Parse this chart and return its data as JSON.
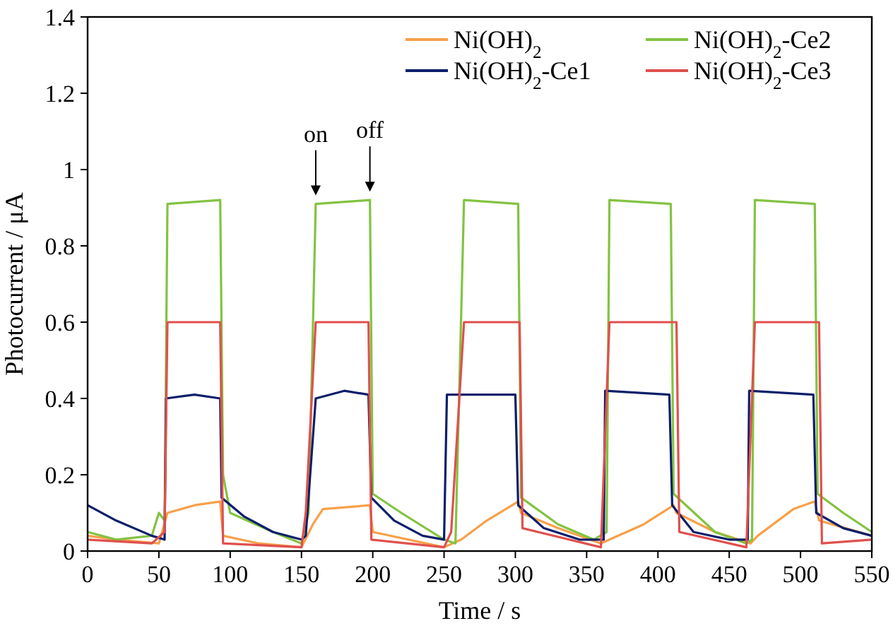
{
  "chart_data": {
    "type": "line",
    "xlabel": "Time / s",
    "ylabel": "Photocurrent / μA",
    "xlim": [
      0,
      550
    ],
    "xticks": [
      0,
      50,
      100,
      150,
      200,
      250,
      300,
      350,
      400,
      450,
      500,
      550
    ],
    "ylim": [
      0,
      1.4
    ],
    "yticks": [
      0,
      0.2,
      0.4,
      0.6,
      0.8,
      1,
      1.2,
      1.4
    ],
    "grid": false,
    "legend": "top right",
    "marker": "none",
    "line_style": "solid",
    "annotations": [
      {
        "text": "on",
        "x": 160,
        "y": 0.91
      },
      {
        "text": "off",
        "x": 198,
        "y": 0.92
      }
    ],
    "series": [
      {
        "name": "Ni(OH)$_{2}$",
        "color": "#f7a04a",
        "x": [
          0,
          20,
          50,
          56,
          75,
          93,
          95,
          120,
          150,
          158,
          165,
          198,
          200,
          250,
          262,
          280,
          302,
          304,
          330,
          360,
          366,
          390,
          411,
          413,
          440,
          465,
          470,
          495,
          510,
          513,
          550
        ],
        "values": [
          0.04,
          0.03,
          0.02,
          0.1,
          0.12,
          0.13,
          0.04,
          0.02,
          0.01,
          0.07,
          0.11,
          0.12,
          0.05,
          0.01,
          0.03,
          0.08,
          0.13,
          0.1,
          0.06,
          0.02,
          0.03,
          0.07,
          0.12,
          0.1,
          0.05,
          0.02,
          0.04,
          0.11,
          0.13,
          0.08,
          0.04
        ]
      },
      {
        "name": "Ni(OH)$_{2}$-Ce2",
        "color": "#82c341",
        "x": [
          0,
          20,
          45,
          50,
          54,
          56,
          93,
          95,
          100,
          130,
          150,
          155,
          160,
          198,
          200,
          220,
          250,
          258,
          264,
          302,
          304,
          330,
          355,
          364,
          366,
          409,
          411,
          440,
          462,
          466,
          468,
          510,
          512,
          530,
          550
        ],
        "values": [
          0.05,
          0.03,
          0.04,
          0.1,
          0.08,
          0.91,
          0.92,
          0.2,
          0.1,
          0.05,
          0.02,
          0.1,
          0.91,
          0.92,
          0.15,
          0.1,
          0.03,
          0.02,
          0.92,
          0.91,
          0.14,
          0.07,
          0.03,
          0.05,
          0.92,
          0.91,
          0.15,
          0.05,
          0.02,
          0.03,
          0.92,
          0.91,
          0.15,
          0.1,
          0.05
        ]
      },
      {
        "name": "Ni(OH)$_{2}$-Ce1",
        "color": "#0b1f6b",
        "x": [
          0,
          20,
          45,
          54,
          55,
          75,
          93,
          94,
          110,
          130,
          150,
          153,
          160,
          180,
          197,
          199,
          215,
          235,
          250,
          252,
          300,
          302,
          320,
          345,
          362,
          363,
          408,
          410,
          425,
          450,
          463,
          464,
          509,
          511,
          530,
          550
        ],
        "values": [
          0.12,
          0.08,
          0.04,
          0.03,
          0.4,
          0.41,
          0.4,
          0.14,
          0.09,
          0.05,
          0.03,
          0.04,
          0.4,
          0.42,
          0.41,
          0.14,
          0.08,
          0.04,
          0.03,
          0.41,
          0.41,
          0.12,
          0.06,
          0.03,
          0.03,
          0.42,
          0.41,
          0.12,
          0.05,
          0.03,
          0.03,
          0.42,
          0.41,
          0.1,
          0.06,
          0.04
        ]
      },
      {
        "name": "Ni(OH)$_{2}$-Ce3",
        "color": "#e0504d",
        "x": [
          0,
          45,
          54,
          56,
          93,
          95,
          150,
          153,
          160,
          197,
          199,
          250,
          255,
          264,
          303,
          305,
          360,
          366,
          413,
          415,
          462,
          468,
          513,
          515,
          550
        ],
        "values": [
          0.03,
          0.02,
          0.05,
          0.6,
          0.6,
          0.02,
          0.01,
          0.1,
          0.6,
          0.6,
          0.03,
          0.01,
          0.05,
          0.6,
          0.6,
          0.06,
          0.01,
          0.6,
          0.6,
          0.05,
          0.01,
          0.6,
          0.6,
          0.02,
          0.03
        ]
      }
    ]
  }
}
